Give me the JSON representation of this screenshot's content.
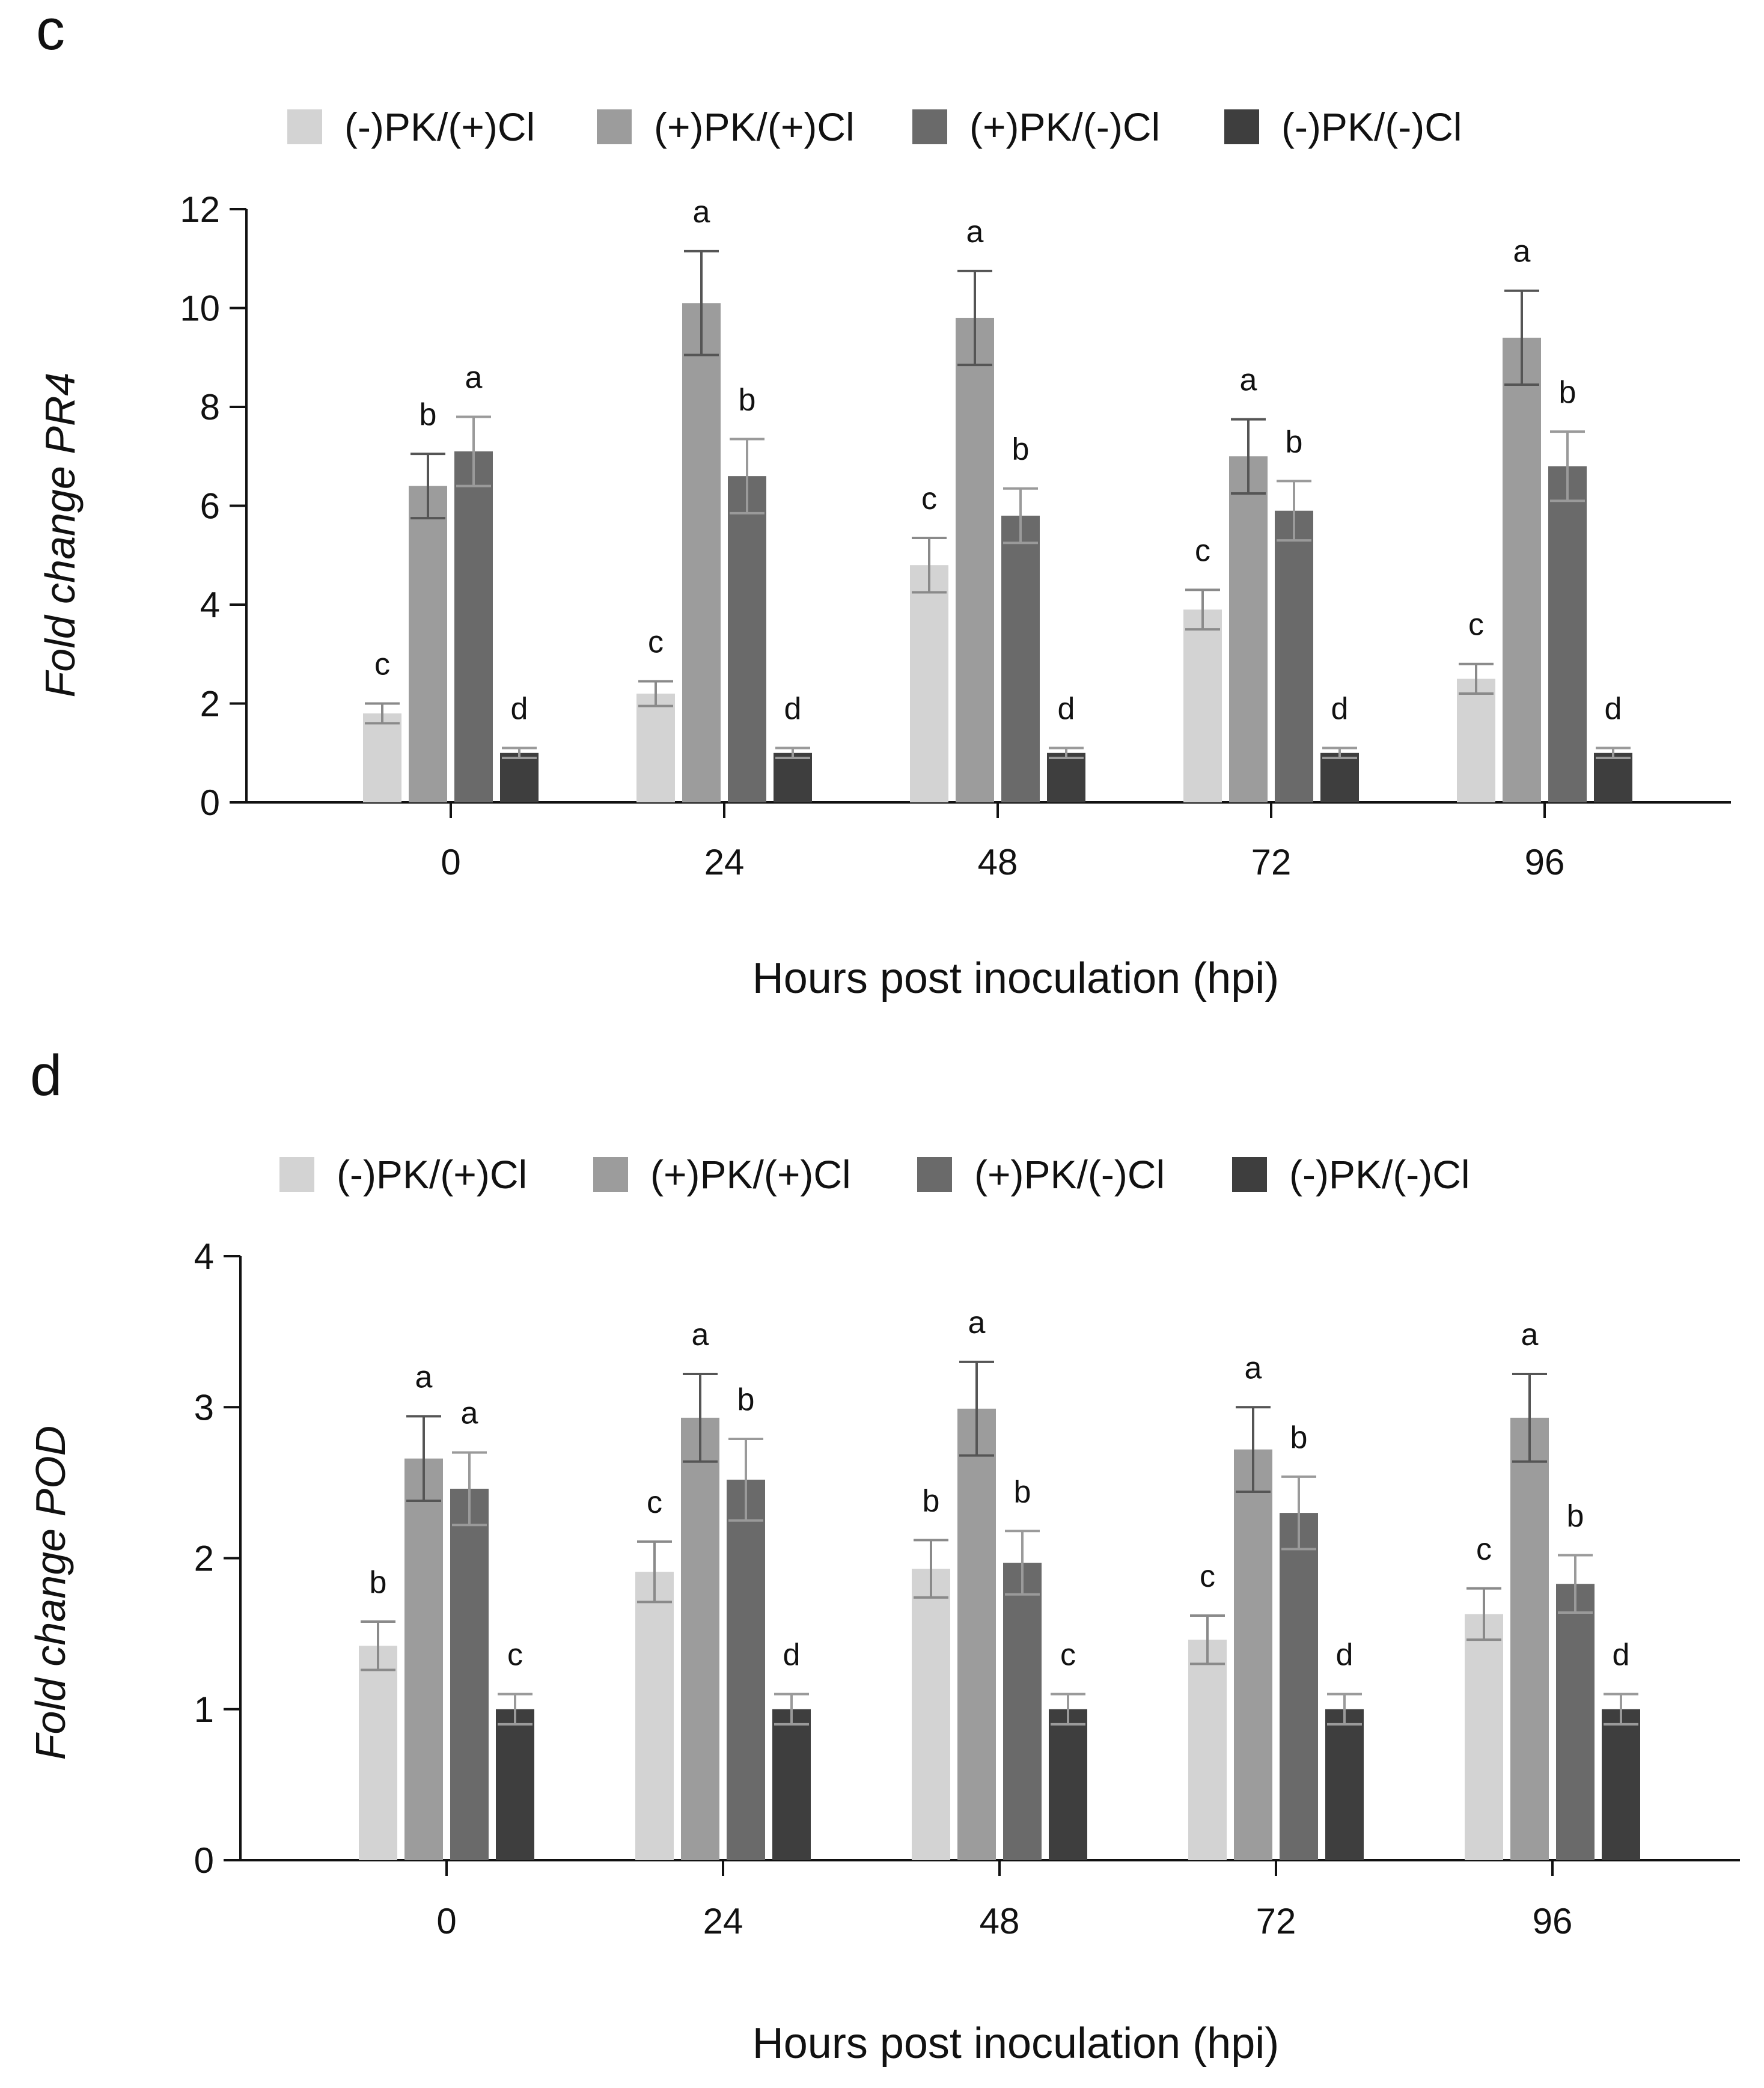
{
  "figure": {
    "panels": [
      "c",
      "d"
    ]
  },
  "chart_data": [
    {
      "panel": "c",
      "type": "bar",
      "title": "",
      "xlabel": "Hours post inoculation (hpi)",
      "ylabel_prefix": "Fold change ",
      "ylabel_gene": "PR4",
      "ylim": [
        0,
        12
      ],
      "yticks": [
        0,
        2,
        4,
        6,
        8,
        10,
        12
      ],
      "grid": false,
      "legend_position": "top",
      "categories": [
        "0",
        "24",
        "48",
        "72",
        "96"
      ],
      "series": [
        {
          "name": "(-)PK/(+)Cl",
          "color": "#d3d3d3",
          "values": [
            1.8,
            2.2,
            4.8,
            3.9,
            2.5
          ],
          "errors": [
            0.2,
            0.25,
            0.55,
            0.4,
            0.3
          ],
          "letters": [
            "c",
            "c",
            "c",
            "c",
            "c"
          ]
        },
        {
          "name": "(+)PK/(+)Cl",
          "color": "#9c9c9c",
          "values": [
            6.4,
            10.1,
            9.8,
            7.0,
            9.4
          ],
          "errors": [
            0.65,
            1.05,
            0.95,
            0.75,
            0.95
          ],
          "letters": [
            "b",
            "a",
            "a",
            "a",
            "a"
          ]
        },
        {
          "name": "(+)PK/(-)Cl",
          "color": "#6a6a6a",
          "values": [
            7.1,
            6.6,
            5.8,
            5.9,
            6.8
          ],
          "errors": [
            0.7,
            0.75,
            0.55,
            0.6,
            0.7
          ],
          "letters": [
            "a",
            "b",
            "b",
            "b",
            "b"
          ]
        },
        {
          "name": "(-)PK/(-)Cl",
          "color": "#3e3e3e",
          "values": [
            1.0,
            1.0,
            1.0,
            1.0,
            1.0
          ],
          "errors": [
            0.1,
            0.1,
            0.1,
            0.1,
            0.1
          ],
          "letters": [
            "d",
            "d",
            "d",
            "d",
            "d"
          ]
        }
      ]
    },
    {
      "panel": "d",
      "type": "bar",
      "title": "",
      "xlabel": "Hours post inoculation (hpi)",
      "ylabel_prefix": "Fold change ",
      "ylabel_gene": "POD",
      "ylim": [
        0,
        4
      ],
      "yticks": [
        0,
        1,
        2,
        3,
        4
      ],
      "grid": false,
      "legend_position": "top",
      "categories": [
        "0",
        "24",
        "48",
        "72",
        "96"
      ],
      "series": [
        {
          "name": "(-)PK/(+)Cl",
          "color": "#d3d3d3",
          "values": [
            1.42,
            1.91,
            1.93,
            1.46,
            1.63
          ],
          "errors": [
            0.16,
            0.2,
            0.19,
            0.16,
            0.17
          ],
          "letters": [
            "b",
            "c",
            "b",
            "c",
            "c"
          ]
        },
        {
          "name": "(+)PK/(+)Cl",
          "color": "#9c9c9c",
          "values": [
            2.66,
            2.93,
            2.99,
            2.72,
            2.93
          ],
          "errors": [
            0.28,
            0.29,
            0.31,
            0.28,
            0.29
          ],
          "letters": [
            "a",
            "a",
            "a",
            "a",
            "a"
          ]
        },
        {
          "name": "(+)PK/(-)Cl",
          "color": "#6a6a6a",
          "values": [
            2.46,
            2.52,
            1.97,
            2.3,
            1.83
          ],
          "errors": [
            0.24,
            0.27,
            0.21,
            0.24,
            0.19
          ],
          "letters": [
            "a",
            "b",
            "b",
            "b",
            "b"
          ]
        },
        {
          "name": "(-)PK/(-)Cl",
          "color": "#3e3e3e",
          "values": [
            1.0,
            1.0,
            1.0,
            1.0,
            1.0
          ],
          "errors": [
            0.1,
            0.1,
            0.1,
            0.1,
            0.1
          ],
          "letters": [
            "c",
            "d",
            "c",
            "d",
            "d"
          ]
        }
      ]
    }
  ]
}
